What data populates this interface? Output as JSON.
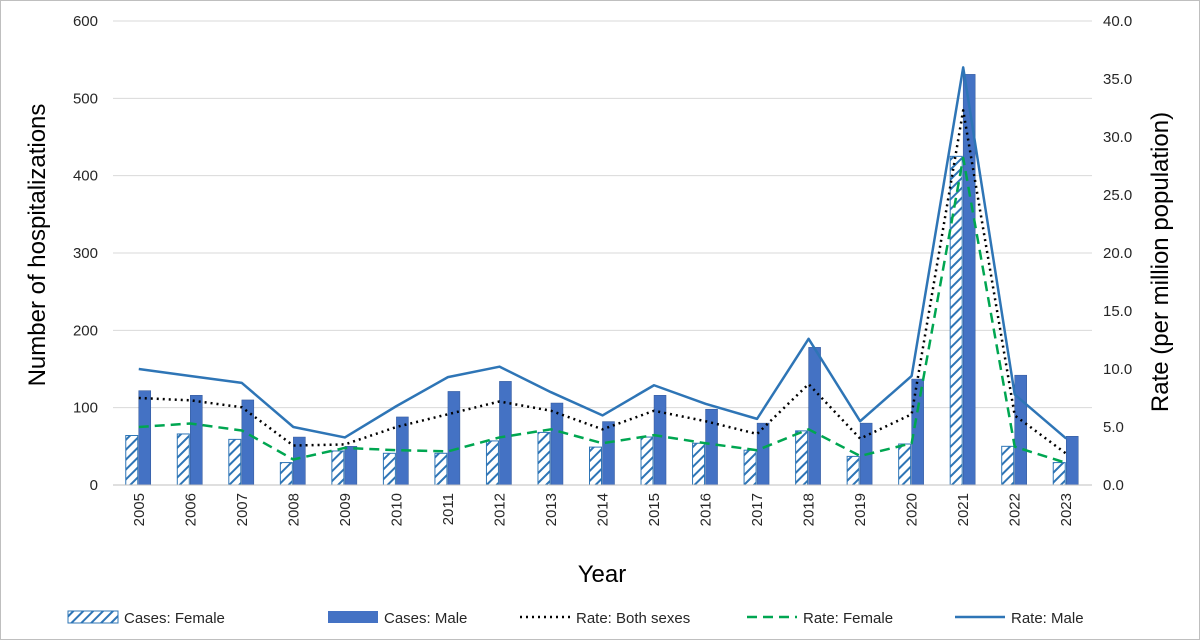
{
  "chart_data": {
    "type": "bar",
    "title": "",
    "xlabel": "Year",
    "ylabel": "Number of hospitalizations",
    "y2label": "Rate (per million population)",
    "ylim": [
      0,
      600
    ],
    "y2lim": [
      0,
      40
    ],
    "yticks": [
      "0",
      "100",
      "200",
      "300",
      "400",
      "500",
      "600"
    ],
    "y2ticks": [
      "0.0",
      "5.0",
      "10.0",
      "15.0",
      "20.0",
      "25.0",
      "30.0",
      "35.0",
      "40.0"
    ],
    "grid": true,
    "legend_position": "bottom",
    "categories": [
      "2005",
      "2006",
      "2007",
      "2008",
      "2009",
      "2010",
      "2011",
      "2012",
      "2013",
      "2014",
      "2015",
      "2016",
      "2017",
      "2018",
      "2019",
      "2020",
      "2021",
      "2022",
      "2023"
    ],
    "series": [
      {
        "name": "Cases: Female",
        "type": "bar",
        "axis": "left",
        "style": "hatched",
        "color": "#2e75b6",
        "values": [
          64,
          66,
          59,
          29,
          44,
          41,
          41,
          57,
          68,
          49,
          62,
          54,
          45,
          70,
          37,
          53,
          425,
          50,
          29
        ]
      },
      {
        "name": "Cases: Male",
        "type": "bar",
        "axis": "left",
        "style": "solid",
        "color": "#4472c4",
        "values": [
          122,
          116,
          110,
          62,
          50,
          88,
          121,
          134,
          106,
          82,
          116,
          98,
          80,
          178,
          80,
          137,
          531,
          142,
          63
        ]
      },
      {
        "name": "Rate: Both sexes",
        "type": "line",
        "axis": "right",
        "style": "dotted",
        "color": "#000000",
        "values": [
          7.5,
          7.3,
          6.7,
          3.4,
          3.5,
          5.0,
          6.1,
          7.2,
          6.4,
          4.8,
          6.4,
          5.5,
          4.4,
          8.7,
          4.0,
          6.1,
          32.3,
          6.0,
          2.7
        ]
      },
      {
        "name": "Rate: Female",
        "type": "line",
        "axis": "right",
        "style": "dashed",
        "color": "#00a651",
        "values": [
          5.0,
          5.3,
          4.7,
          2.2,
          3.2,
          3.0,
          2.9,
          4.1,
          4.8,
          3.6,
          4.3,
          3.6,
          3.0,
          4.8,
          2.5,
          3.6,
          28.2,
          3.3,
          1.9
        ]
      },
      {
        "name": "Rate: Male",
        "type": "line",
        "axis": "right",
        "style": "solid",
        "color": "#2e75b6",
        "values": [
          10.0,
          9.4,
          8.8,
          5.0,
          4.1,
          6.8,
          9.3,
          10.2,
          8.0,
          6.0,
          8.6,
          7.0,
          5.7,
          12.6,
          5.5,
          9.4,
          36.0,
          7.8,
          4.0
        ]
      }
    ]
  }
}
